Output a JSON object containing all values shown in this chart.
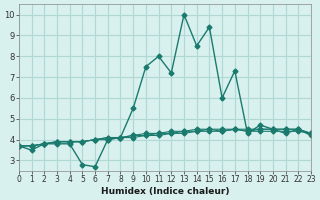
{
  "xlabel": "Humidex (Indice chaleur)",
  "ylabel": "",
  "background_color": "#d8f0ee",
  "grid_color": "#b0d8d4",
  "line_color": "#1a7a6e",
  "xlim": [
    0,
    23
  ],
  "ylim": [
    2.5,
    10.5
  ],
  "xticks": [
    0,
    1,
    2,
    3,
    4,
    5,
    6,
    7,
    8,
    9,
    10,
    11,
    12,
    13,
    14,
    15,
    16,
    17,
    18,
    19,
    20,
    21,
    22,
    23
  ],
  "yticks": [
    3,
    4,
    5,
    6,
    7,
    8,
    9,
    10
  ],
  "series": [
    [
      3.7,
      3.5,
      3.8,
      3.8,
      3.8,
      2.8,
      2.7,
      4.0,
      4.1,
      5.5,
      7.5,
      8.0,
      7.2,
      10.0,
      8.5,
      9.4,
      6.0,
      7.3,
      4.3,
      4.7,
      4.5,
      4.3,
      4.5,
      4.2
    ],
    [
      3.7,
      3.7,
      3.8,
      3.9,
      3.9,
      3.9,
      4.0,
      4.0,
      4.1,
      4.1,
      4.2,
      4.2,
      4.3,
      4.3,
      4.4,
      4.4,
      4.4,
      4.5,
      4.4,
      4.4,
      4.4,
      4.4,
      4.4,
      4.3
    ],
    [
      3.7,
      3.7,
      3.8,
      3.9,
      3.9,
      3.9,
      4.0,
      4.1,
      4.1,
      4.2,
      4.3,
      4.3,
      4.4,
      4.4,
      4.5,
      4.5,
      4.5,
      4.5,
      4.5,
      4.5,
      4.5,
      4.5,
      4.5,
      4.3
    ],
    [
      3.7,
      3.7,
      3.8,
      3.9,
      3.9,
      3.9,
      4.0,
      4.1,
      4.1,
      4.2,
      4.2,
      4.3,
      4.3,
      4.4,
      4.4,
      4.5,
      4.4,
      4.5,
      4.4,
      4.5,
      4.5,
      4.5,
      4.5,
      4.3
    ]
  ]
}
